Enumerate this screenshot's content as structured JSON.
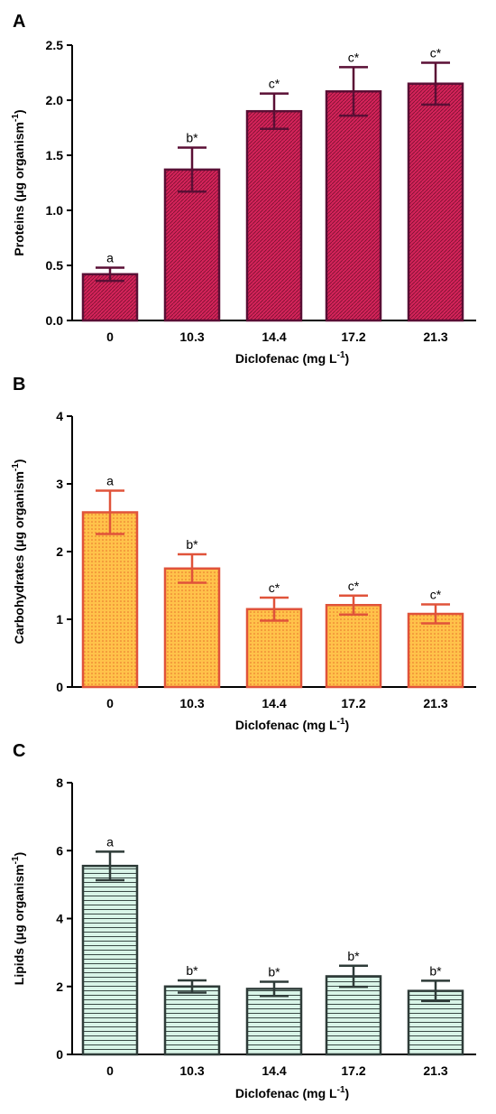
{
  "chart_data": [
    {
      "type": "bar",
      "panel": "A",
      "categories": [
        "0",
        "10.3",
        "14.4",
        "17.2",
        "21.3"
      ],
      "values": [
        0.42,
        1.37,
        1.9,
        2.08,
        2.15
      ],
      "error": [
        0.06,
        0.2,
        0.16,
        0.22,
        0.19
      ],
      "significance": [
        "a",
        "b*",
        "c*",
        "c*",
        "c*"
      ],
      "xlabel": "Diclofenac (mg L",
      "xlabel_sup": "-1",
      "xlabel_end": ")",
      "ylabel": "Proteins (μg organism",
      "ylabel_sup": "-1",
      "ylabel_end": ")",
      "ylim": [
        0,
        2.5
      ],
      "yticks": [
        "0.0",
        "0.5",
        "1.0",
        "1.5",
        "2.0",
        "2.5"
      ],
      "colors": {
        "fill": "#d4235a",
        "stroke": "#5a0f35",
        "pattern": "#7a1030",
        "error": "#5a0f35"
      }
    },
    {
      "type": "bar",
      "panel": "B",
      "categories": [
        "0",
        "10.3",
        "14.4",
        "17.2",
        "21.3"
      ],
      "values": [
        2.58,
        1.75,
        1.15,
        1.21,
        1.08
      ],
      "error": [
        0.32,
        0.21,
        0.17,
        0.14,
        0.14
      ],
      "significance": [
        "a",
        "b*",
        "c*",
        "c*",
        "c*"
      ],
      "xlabel": "Diclofenac  (mg L",
      "xlabel_sup": "-1",
      "xlabel_end": ")",
      "ylabel": "Carbohydrates (μg organism",
      "ylabel_sup": "-1",
      "ylabel_end": ")",
      "ylim": [
        0,
        4
      ],
      "yticks": [
        "0",
        "1",
        "2",
        "3",
        "4"
      ],
      "colors": {
        "fill": "#ffc24a",
        "stroke": "#e0533a",
        "pattern": "#e8702a",
        "error": "#e0533a"
      }
    },
    {
      "type": "bar",
      "panel": "C",
      "categories": [
        "0",
        "10.3",
        "14.4",
        "17.2",
        "21.3"
      ],
      "values": [
        5.55,
        2.0,
        1.93,
        2.3,
        1.87
      ],
      "error": [
        0.42,
        0.18,
        0.21,
        0.31,
        0.3
      ],
      "significance": [
        "a",
        "b*",
        "b*",
        "b*",
        "b*"
      ],
      "xlabel": "Diclofenac  (mg L",
      "xlabel_sup": "-1",
      "xlabel_end": ")",
      "ylabel": "Lipids (μg organism",
      "ylabel_sup": "-1",
      "ylabel_end": ")",
      "ylim": [
        0,
        8
      ],
      "yticks": [
        "0",
        "2",
        "4",
        "6",
        "8"
      ],
      "colors": {
        "fill": "#d9f5e8",
        "stroke": "#2e3b38",
        "pattern": "#3a4a46",
        "error": "#2e3b38"
      }
    }
  ]
}
